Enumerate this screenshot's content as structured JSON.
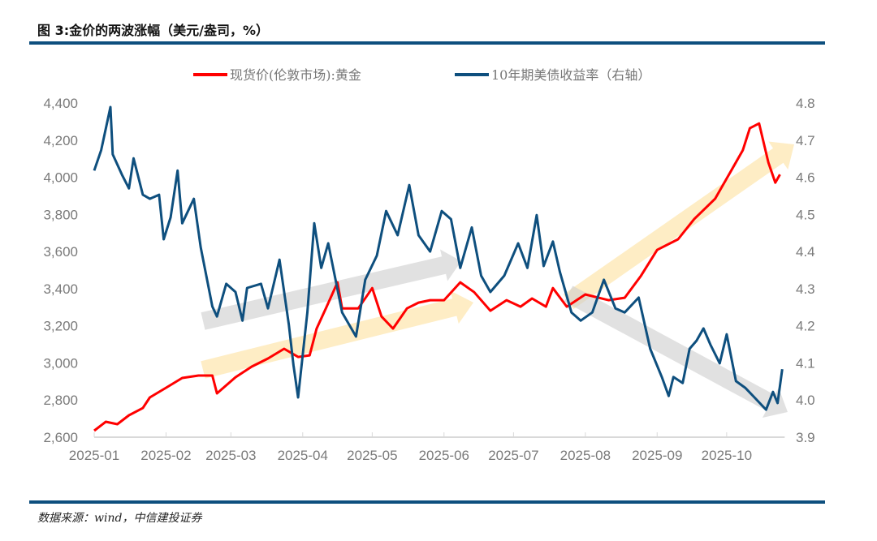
{
  "title": "图 3:金价的两波涨幅（美元/盎司，%）",
  "source": "数据来源：wind，中信建投证券",
  "chart_data": {
    "type": "line",
    "title": "图 3:金价的两波涨幅（美元/盎司，%）",
    "x_unit": "day of 2025 (0 = 2025-01-01)",
    "x_ticks": [
      {
        "label": "2025-01",
        "day": 0
      },
      {
        "label": "2025-02",
        "day": 31
      },
      {
        "label": "2025-03",
        "day": 59
      },
      {
        "label": "2025-04",
        "day": 90
      },
      {
        "label": "2025-05",
        "day": 120
      },
      {
        "label": "2025-06",
        "day": 151
      },
      {
        "label": "2025-07",
        "day": 181
      },
      {
        "label": "2025-08",
        "day": 212
      },
      {
        "label": "2025-09",
        "day": 243
      },
      {
        "label": "2025-10",
        "day": 273
      }
    ],
    "xlim": [
      0,
      297
    ],
    "y_left": {
      "range": [
        2600,
        4400
      ],
      "ticks": [
        "2,600",
        "2,800",
        "3,000",
        "3,200",
        "3,400",
        "3,600",
        "3,800",
        "4,000",
        "4,200",
        "4,400"
      ]
    },
    "y_right": {
      "range": [
        3.9,
        4.8
      ],
      "ticks": [
        "3.9",
        "4.0",
        "4.1",
        "4.2",
        "4.3",
        "4.4",
        "4.5",
        "4.6",
        "4.7",
        "4.8"
      ]
    },
    "legend_position": "top",
    "series": [
      {
        "name": "现货价(伦敦市场):黄金",
        "axis": "left",
        "color": "#ff0000",
        "x": [
          0,
          5,
          10,
          15,
          21,
          24,
          31,
          38,
          45,
          51,
          53,
          61,
          68,
          75,
          82,
          88,
          93,
          96,
          100,
          105,
          107,
          114,
          120,
          124,
          129,
          135,
          140,
          145,
          151,
          158,
          164,
          171,
          178,
          184,
          189,
          195,
          198,
          204,
          212,
          222,
          229,
          236,
          243,
          252,
          259,
          268,
          275,
          280,
          283,
          287,
          291,
          294,
          296
        ],
        "y": [
          2635,
          2683,
          2670,
          2718,
          2757,
          2814,
          2866,
          2919,
          2932,
          2932,
          2836,
          2923,
          2980,
          3024,
          3076,
          3032,
          3041,
          3185,
          3294,
          3434,
          3294,
          3294,
          3403,
          3250,
          3185,
          3294,
          3325,
          3338,
          3338,
          3434,
          3381,
          3281,
          3338,
          3303,
          3347,
          3303,
          3403,
          3303,
          3369,
          3338,
          3351,
          3469,
          3609,
          3666,
          3775,
          3884,
          4037,
          4146,
          4264,
          4290,
          4080,
          3971,
          4015
        ]
      },
      {
        "name": "10年期美债收益率（右轴）",
        "axis": "right",
        "color": "#0e4f7e",
        "x": [
          0,
          3,
          7,
          8,
          12,
          15,
          17,
          21,
          24,
          28,
          30,
          33,
          36,
          38,
          43,
          46,
          51,
          53,
          57,
          61,
          64,
          66,
          72,
          75,
          80,
          84,
          86,
          88,
          92,
          95,
          98,
          101,
          107,
          113,
          117,
          122,
          126,
          131,
          136,
          140,
          145,
          150,
          154,
          158,
          163,
          167,
          171,
          177,
          183,
          187,
          191,
          194,
          198,
          201,
          206,
          210,
          215,
          220,
          225,
          229,
          235,
          240,
          245,
          248,
          250,
          254,
          257,
          260,
          263,
          266,
          270,
          273,
          277,
          281,
          285,
          290,
          293,
          295,
          297
        ],
        "y": [
          4.618,
          4.673,
          4.789,
          4.662,
          4.607,
          4.57,
          4.651,
          4.553,
          4.542,
          4.553,
          4.433,
          4.492,
          4.618,
          4.476,
          4.542,
          4.411,
          4.252,
          4.225,
          4.313,
          4.291,
          4.214,
          4.302,
          4.313,
          4.247,
          4.378,
          4.203,
          4.094,
          4.007,
          4.236,
          4.476,
          4.356,
          4.422,
          4.236,
          4.171,
          4.324,
          4.389,
          4.509,
          4.444,
          4.579,
          4.444,
          4.4,
          4.509,
          4.487,
          4.356,
          4.465,
          4.335,
          4.291,
          4.335,
          4.422,
          4.356,
          4.498,
          4.361,
          4.427,
          4.345,
          4.236,
          4.214,
          4.236,
          4.324,
          4.247,
          4.236,
          4.276,
          4.138,
          4.062,
          4.011,
          4.062,
          4.046,
          4.138,
          4.16,
          4.193,
          4.149,
          4.099,
          4.177,
          4.051,
          4.033,
          4.007,
          3.974,
          4.022,
          3.992,
          4.083
        ]
      }
    ]
  }
}
